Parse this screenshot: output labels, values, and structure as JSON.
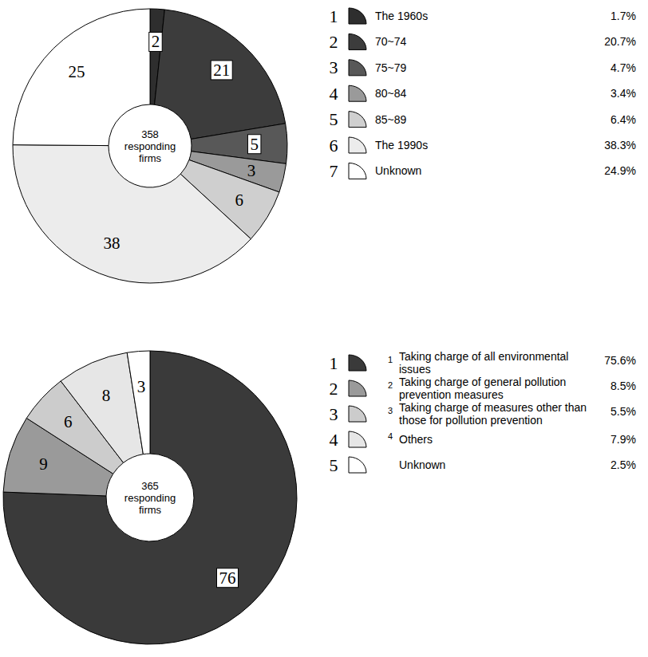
{
  "chart_data": [
    {
      "type": "donut",
      "center_text": [
        "358",
        "responding",
        "firms"
      ],
      "categories": [
        "The 1960s",
        "70~74",
        "75~79",
        "80~84",
        "85~89",
        "The 1990s",
        "Unknown"
      ],
      "values": [
        1.7,
        20.7,
        4.7,
        3.4,
        6.4,
        38.3,
        24.9
      ],
      "value_labels": [
        "2",
        "21",
        "5",
        "3",
        "6",
        "38",
        "25"
      ],
      "percent_labels": [
        "1.7%",
        "20.7%",
        "4.7%",
        "3.4%",
        "6.4%",
        "38.3%",
        "24.9%"
      ],
      "legend_numbers": [
        "1",
        "2",
        "3",
        "4",
        "5",
        "6",
        "7"
      ],
      "colors": [
        "#2e2e2e",
        "#3c3c3c",
        "#585858",
        "#9a9a9a",
        "#cfcfcf",
        "#ececec",
        "#ffffff"
      ],
      "data_labels": true,
      "legend": "right"
    },
    {
      "type": "donut",
      "center_text": [
        "365",
        "responding",
        "firms"
      ],
      "categories": [
        "Taking charge of all environmental issues",
        "Taking charge of general pollution prevention measures",
        "Taking charge of measures other than those for pollution prevention",
        "Others",
        "Unknown"
      ],
      "values": [
        75.6,
        8.5,
        5.5,
        7.9,
        2.5
      ],
      "value_labels": [
        "76",
        "9",
        "6",
        "8",
        "3"
      ],
      "percent_labels": [
        "75.6%",
        "8.5%",
        "5.5%",
        "7.9%",
        "2.5%"
      ],
      "legend_numbers": [
        "1",
        "2",
        "3",
        "4",
        "5"
      ],
      "legend_subnumbers": [
        "1",
        "2",
        "3",
        "4",
        null
      ],
      "colors": [
        "#3a3a3a",
        "#9a9a9a",
        "#cccccc",
        "#e6e6e6",
        "#ffffff"
      ],
      "data_labels": true,
      "legend": "right"
    }
  ]
}
